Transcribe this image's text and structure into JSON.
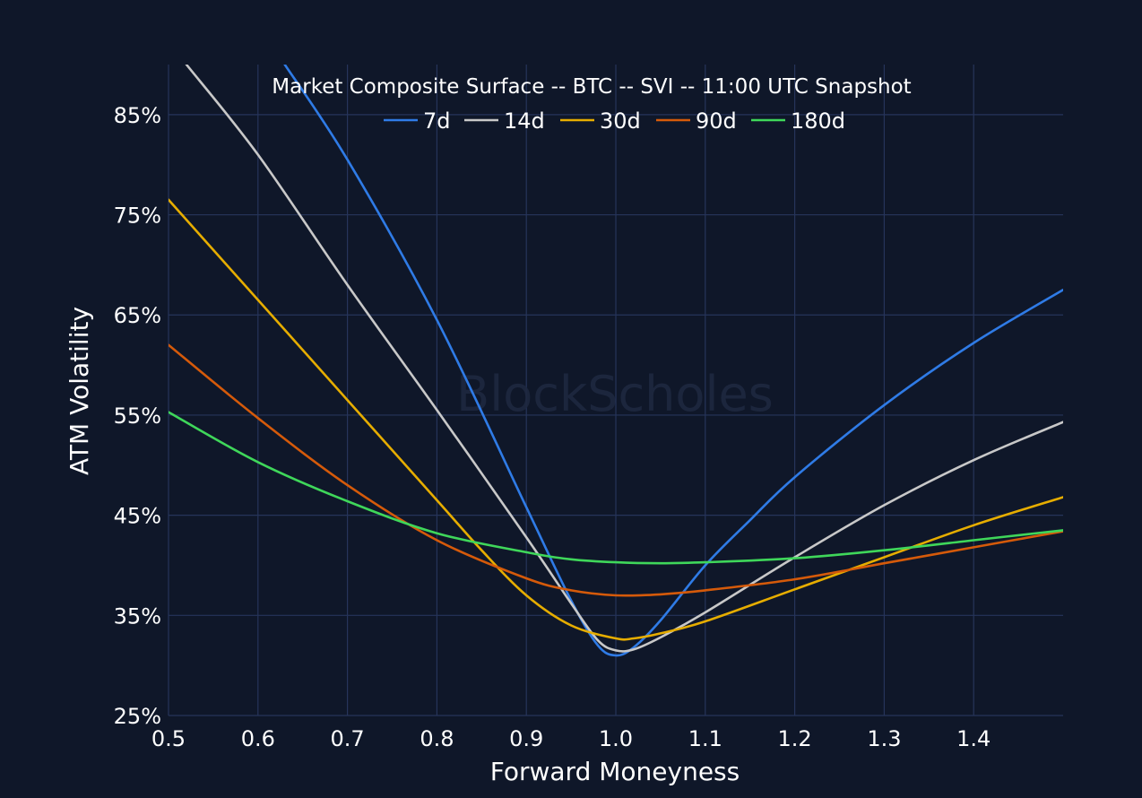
{
  "chart_data": {
    "type": "line",
    "title": "Market Composite Surface -- BTC -- SVI -- 11:00 UTC Snapshot",
    "xlabel": "Forward Moneyness",
    "ylabel": "ATM Volatility",
    "watermark": "BlockScholes",
    "xlim": [
      0.5,
      1.5
    ],
    "ylim": [
      25,
      90
    ],
    "x_ticks": [
      0.5,
      0.6,
      0.7,
      0.8,
      0.9,
      1.0,
      1.1,
      1.2,
      1.3,
      1.4
    ],
    "x_tick_labels": [
      "0.5",
      "0.6",
      "0.7",
      "0.8",
      "0.9",
      "1.0",
      "1.1",
      "1.2",
      "1.3",
      "1.4"
    ],
    "y_ticks": [
      25,
      35,
      45,
      55,
      65,
      75,
      85
    ],
    "y_tick_labels": [
      "25%",
      "35%",
      "45%",
      "55%",
      "65%",
      "75%",
      "85%"
    ],
    "grid": true,
    "legend_position": "top-center",
    "colors": {
      "background": "#0f1729",
      "grid": "#26345a",
      "text": "#ffffff"
    },
    "series": [
      {
        "name": "7d",
        "color": "#2f7be6",
        "points": [
          [
            0.63,
            90
          ],
          [
            0.7,
            80.5
          ],
          [
            0.8,
            64.5
          ],
          [
            0.9,
            45.8
          ],
          [
            0.95,
            36.5
          ],
          [
            0.98,
            32.0
          ],
          [
            1.0,
            31.0
          ],
          [
            1.02,
            31.8
          ],
          [
            1.05,
            34.5
          ],
          [
            1.1,
            40.0
          ],
          [
            1.15,
            44.5
          ],
          [
            1.2,
            48.8
          ],
          [
            1.3,
            56.0
          ],
          [
            1.4,
            62.2
          ],
          [
            1.5,
            67.5
          ]
        ]
      },
      {
        "name": "14d",
        "color": "#c8c8c8",
        "points": [
          [
            0.52,
            90
          ],
          [
            0.6,
            81
          ],
          [
            0.7,
            68
          ],
          [
            0.8,
            55.5
          ],
          [
            0.9,
            42.8
          ],
          [
            0.95,
            36.2
          ],
          [
            0.98,
            32.5
          ],
          [
            1.0,
            31.5
          ],
          [
            1.02,
            31.6
          ],
          [
            1.05,
            32.8
          ],
          [
            1.1,
            35.3
          ],
          [
            1.2,
            40.8
          ],
          [
            1.3,
            46.0
          ],
          [
            1.4,
            50.5
          ],
          [
            1.5,
            54.3
          ]
        ]
      },
      {
        "name": "30d",
        "color": "#e6ad00",
        "points": [
          [
            0.5,
            76.5
          ],
          [
            0.6,
            66.5
          ],
          [
            0.7,
            56.5
          ],
          [
            0.8,
            46.5
          ],
          [
            0.85,
            41.5
          ],
          [
            0.9,
            37.0
          ],
          [
            0.95,
            34.0
          ],
          [
            1.0,
            32.7
          ],
          [
            1.02,
            32.7
          ],
          [
            1.05,
            33.2
          ],
          [
            1.1,
            34.4
          ],
          [
            1.2,
            37.6
          ],
          [
            1.3,
            40.8
          ],
          [
            1.4,
            44.0
          ],
          [
            1.5,
            46.8
          ]
        ]
      },
      {
        "name": "90d",
        "color": "#d55a0a",
        "points": [
          [
            0.5,
            62.0
          ],
          [
            0.6,
            54.7
          ],
          [
            0.7,
            48.0
          ],
          [
            0.8,
            42.5
          ],
          [
            0.9,
            38.7
          ],
          [
            0.95,
            37.5
          ],
          [
            1.0,
            37.0
          ],
          [
            1.05,
            37.1
          ],
          [
            1.1,
            37.5
          ],
          [
            1.2,
            38.6
          ],
          [
            1.3,
            40.2
          ],
          [
            1.4,
            41.8
          ],
          [
            1.5,
            43.4
          ]
        ]
      },
      {
        "name": "180d",
        "color": "#3fd75a",
        "points": [
          [
            0.5,
            55.3
          ],
          [
            0.6,
            50.3
          ],
          [
            0.7,
            46.4
          ],
          [
            0.8,
            43.2
          ],
          [
            0.9,
            41.3
          ],
          [
            0.95,
            40.6
          ],
          [
            1.0,
            40.3
          ],
          [
            1.05,
            40.2
          ],
          [
            1.1,
            40.3
          ],
          [
            1.2,
            40.7
          ],
          [
            1.3,
            41.5
          ],
          [
            1.4,
            42.5
          ],
          [
            1.5,
            43.5
          ]
        ]
      }
    ]
  }
}
